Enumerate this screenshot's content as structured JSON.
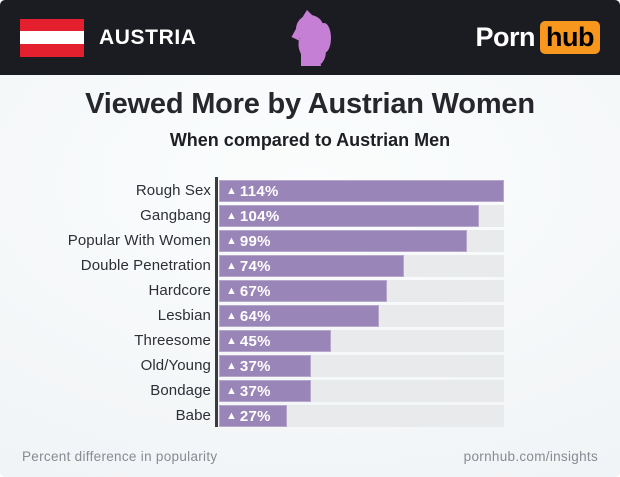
{
  "header": {
    "country": "AUSTRIA",
    "flag": "austria-flag",
    "center_icon": "woman-silhouette-icon",
    "brand": {
      "porn": "Porn",
      "hub": "hub"
    }
  },
  "title": "Viewed More by Austrian Women",
  "subtitle": "When compared to Austrian Men",
  "footer": {
    "left": "Percent difference in popularity",
    "right": "pornhub.com/insights"
  },
  "colors": {
    "header_bg": "#1b1b22",
    "flag_red": "#e5202e",
    "hub_orange": "#f7971d",
    "woman_icon": "#c57fd4",
    "bar": "#9a85b8",
    "track": "#e8eaeb",
    "axis": "#3a3a42",
    "title_text": "#26262c",
    "subtitle_text": "#1e1e24",
    "label_text": "#2e2e36",
    "footer_text": "#878b92"
  },
  "chart_data": {
    "type": "bar",
    "orientation": "horizontal",
    "title": "Viewed More by Austrian Women",
    "subtitle": "When compared to Austrian Men",
    "xlabel": "Percent difference in popularity",
    "categories": [
      "Rough Sex",
      "Gangbang",
      "Popular With Women",
      "Double Penetration",
      "Hardcore",
      "Lesbian",
      "Threesome",
      "Old/Young",
      "Bondage",
      "Babe"
    ],
    "values": [
      114,
      104,
      99,
      74,
      67,
      64,
      45,
      37,
      37,
      27
    ],
    "value_prefix": "▲",
    "value_suffix": "%",
    "xlim": [
      0,
      114
    ],
    "grid": false,
    "legend": false
  }
}
